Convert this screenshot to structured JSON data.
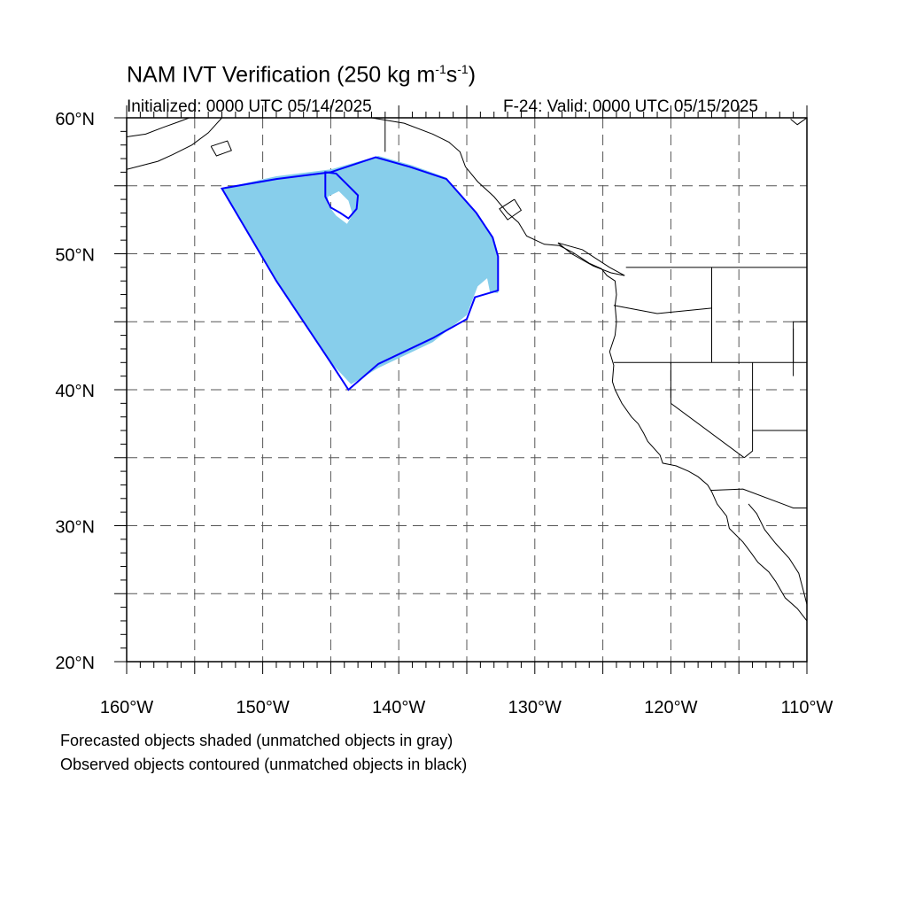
{
  "title": {
    "main": "NAM IVT Verification (250 kg m",
    "exp1": "-1",
    "mid": "s",
    "exp2": "-1",
    "end": ")"
  },
  "init_label": "Initialized: 0000 UTC 05/14/2025",
  "valid_label": "F-24: Valid: 0000 UTC 05/15/2025",
  "notes": [
    "Forecasted objects shaded (unmatched objects in gray)",
    "Observed objects contoured (unmatched objects in black)"
  ],
  "map": {
    "lon_range": [
      -160,
      -110
    ],
    "lat_range": [
      20,
      60
    ],
    "lon_ticks": [
      -160,
      -150,
      -140,
      -130,
      -120,
      -110
    ],
    "lon_labels": [
      "160°W",
      "150°W",
      "140°W",
      "130°W",
      "120°W",
      "110°W"
    ],
    "lat_ticks": [
      60,
      50,
      40,
      30,
      20
    ],
    "lat_labels": [
      "60°N",
      "50°N",
      "40°N",
      "30°N",
      "20°N"
    ],
    "grid_lon": [
      -155,
      -150,
      -145,
      -140,
      -135,
      -130,
      -125,
      -120,
      -115
    ],
    "grid_lat": [
      25,
      30,
      35,
      40,
      45,
      50,
      55
    ],
    "colors": {
      "forecast_fill": "#87ceeb",
      "observed_contour": "#0000ff",
      "coast": "#000000",
      "grid": "#555555"
    },
    "forecast_object": [
      [
        -153,
        54.8
      ],
      [
        -149,
        55.7
      ],
      [
        -145,
        56.2
      ],
      [
        -141.5,
        57.2
      ],
      [
        -139,
        56.5
      ],
      [
        -136.5,
        55.6
      ],
      [
        -134.5,
        53.2
      ],
      [
        -133,
        51
      ],
      [
        -132.7,
        49.5
      ],
      [
        -132.7,
        47.1
      ],
      [
        -133.3,
        47.2
      ],
      [
        -133.5,
        48.2
      ],
      [
        -134.2,
        47.6
      ],
      [
        -135,
        45.5
      ],
      [
        -137.5,
        43.5
      ],
      [
        -141.5,
        41.6
      ],
      [
        -143.5,
        40.4
      ],
      [
        -145,
        42
      ],
      [
        -149,
        48
      ],
      [
        -153,
        54.8
      ]
    ],
    "forecast_hole": [
      [
        -145.2,
        54.2
      ],
      [
        -144.4,
        54.6
      ],
      [
        -143.7,
        53.9
      ],
      [
        -143.4,
        52.9
      ],
      [
        -143.8,
        52.2
      ],
      [
        -144.6,
        52.8
      ],
      [
        -145.2,
        53.6
      ],
      [
        -145.2,
        54.2
      ]
    ],
    "observed_object": [
      [
        -153,
        54.8
      ],
      [
        -149,
        55.5
      ],
      [
        -145,
        56
      ],
      [
        -141.7,
        57.1
      ],
      [
        -139.2,
        56.4
      ],
      [
        -136.5,
        55.5
      ],
      [
        -134.3,
        53
      ],
      [
        -133.1,
        51.2
      ],
      [
        -132.7,
        49.8
      ],
      [
        -132.7,
        47.3
      ],
      [
        -134.4,
        46.8
      ],
      [
        -135,
        45.2
      ],
      [
        -137.5,
        43.8
      ],
      [
        -141.5,
        41.9
      ],
      [
        -143.7,
        40
      ],
      [
        -145,
        42
      ],
      [
        -149,
        48
      ],
      [
        -153,
        54.8
      ]
    ],
    "observed_hole": [
      [
        -145.4,
        56
      ],
      [
        -144.6,
        55.9
      ],
      [
        -143.8,
        55.1
      ],
      [
        -143,
        54.3
      ],
      [
        -143.1,
        53.3
      ],
      [
        -143.7,
        52.6
      ],
      [
        -144.3,
        53
      ],
      [
        -145,
        53.4
      ],
      [
        -145.4,
        54.2
      ],
      [
        -145.4,
        56
      ]
    ],
    "coast": [
      [
        [
          -160,
          58.6
        ],
        [
          -158.6,
          58.8
        ],
        [
          -157.3,
          59.3
        ],
        [
          -156.2,
          59.7
        ],
        [
          -155.4,
          60
        ]
      ],
      [
        [
          -160,
          56.2
        ],
        [
          -157.7,
          56.8
        ],
        [
          -156.6,
          57.3
        ],
        [
          -155.2,
          58
        ],
        [
          -154,
          58.9
        ],
        [
          -153,
          60
        ]
      ],
      [
        [
          -153.8,
          57.9
        ],
        [
          -152.6,
          58.3
        ],
        [
          -152.3,
          57.6
        ],
        [
          -153.4,
          57.2
        ],
        [
          -153.8,
          57.9
        ]
      ],
      [
        [
          -142,
          60
        ],
        [
          -139.6,
          59.6
        ],
        [
          -137.5,
          58.8
        ],
        [
          -136.3,
          58.2
        ],
        [
          -135.5,
          57.5
        ],
        [
          -135.1,
          56.4
        ],
        [
          -134.2,
          55.3
        ],
        [
          -133,
          54.2
        ],
        [
          -132,
          53
        ],
        [
          -131.2,
          52.3
        ],
        [
          -130.6,
          51.3
        ],
        [
          -129.3,
          50.7
        ],
        [
          -128.2,
          50.6
        ],
        [
          -127.2,
          50.1
        ],
        [
          -126,
          49.3
        ],
        [
          -125.1,
          48.9
        ],
        [
          -124.7,
          48.4
        ],
        [
          -124.1,
          48
        ],
        [
          -124,
          47
        ],
        [
          -124.1,
          46.2
        ],
        [
          -124,
          45
        ],
        [
          -124.1,
          44
        ],
        [
          -124.5,
          42.8
        ],
        [
          -124.2,
          41.8
        ],
        [
          -124.3,
          40.6
        ],
        [
          -124.1,
          40
        ],
        [
          -123.6,
          39
        ],
        [
          -122.9,
          38
        ],
        [
          -122.4,
          37.5
        ],
        [
          -122,
          36.8
        ],
        [
          -121.7,
          36.2
        ],
        [
          -120.8,
          35.2
        ],
        [
          -120.6,
          34.6
        ],
        [
          -119.6,
          34.4
        ],
        [
          -118.7,
          34
        ],
        [
          -118,
          33.6
        ],
        [
          -117.3,
          33
        ],
        [
          -117,
          32.5
        ],
        [
          -116.6,
          31.6
        ],
        [
          -115.9,
          30.7
        ],
        [
          -115.7,
          29.8
        ],
        [
          -114.7,
          28.8
        ],
        [
          -114.1,
          28
        ],
        [
          -113.6,
          27.3
        ],
        [
          -112.8,
          26.6
        ],
        [
          -112.3,
          25.9
        ],
        [
          -111.6,
          24.7
        ],
        [
          -110.7,
          23.9
        ],
        [
          -110,
          23
        ]
      ],
      [
        [
          -131.5,
          54
        ],
        [
          -131,
          53.2
        ],
        [
          -132,
          52.5
        ],
        [
          -132.6,
          53.3
        ],
        [
          -131.5,
          54
        ]
      ],
      [
        [
          -128.3,
          50.8
        ],
        [
          -126.5,
          50.3
        ],
        [
          -124.5,
          49
        ],
        [
          -123.4,
          48.4
        ],
        [
          -124.4,
          48.6
        ],
        [
          -125.7,
          49.1
        ],
        [
          -127.3,
          50
        ],
        [
          -128.3,
          50.8
        ]
      ],
      [
        [
          -114.3,
          31.6
        ],
        [
          -113.7,
          30.9
        ],
        [
          -113.1,
          29.7
        ],
        [
          -112.3,
          28.7
        ],
        [
          -111.3,
          27.6
        ],
        [
          -110.6,
          26.5
        ],
        [
          -110.2,
          25
        ],
        [
          -110,
          24.2
        ]
      ],
      [
        [
          -110,
          60
        ],
        [
          -110.7,
          59.5
        ],
        [
          -111.2,
          59.9
        ]
      ]
    ],
    "boundaries": [
      [
        [
          -123.3,
          49
        ],
        [
          -110,
          49
        ]
      ],
      [
        [
          -141,
          60
        ],
        [
          -141,
          57.5
        ]
      ],
      [
        [
          -124.2,
          46.2
        ],
        [
          -121,
          45.6
        ],
        [
          -117,
          46
        ]
      ],
      [
        [
          -124.2,
          42
        ],
        [
          -110,
          42
        ]
      ],
      [
        [
          -117,
          49
        ],
        [
          -117,
          42
        ]
      ],
      [
        [
          -120,
          42
        ],
        [
          -120,
          39
        ],
        [
          -114.6,
          35
        ]
      ],
      [
        [
          -114,
          42
        ],
        [
          -114,
          35.5
        ],
        [
          -114.6,
          35
        ]
      ],
      [
        [
          -117.1,
          32.6
        ],
        [
          -114.7,
          32.7
        ],
        [
          -111,
          31.3
        ],
        [
          -110,
          31.3
        ]
      ],
      [
        [
          -111,
          44.5
        ],
        [
          -111,
          42
        ]
      ],
      [
        [
          -110,
          45
        ],
        [
          -111,
          45
        ],
        [
          -111,
          41
        ]
      ],
      [
        [
          -114,
          37
        ],
        [
          -110,
          37
        ]
      ]
    ]
  }
}
